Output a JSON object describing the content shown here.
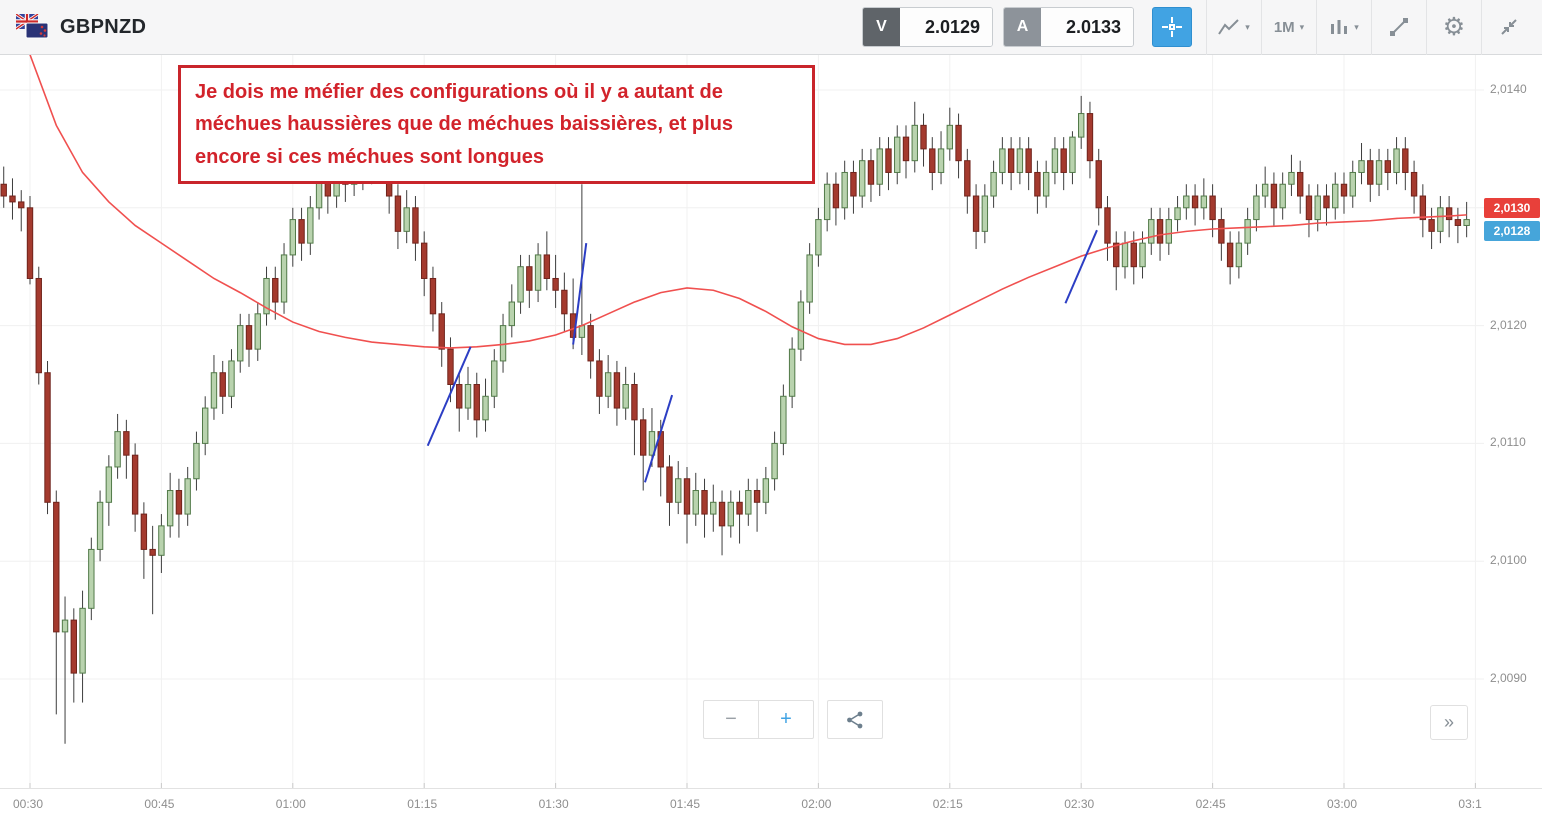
{
  "header": {
    "symbol": "GBPNZD",
    "sell_key": "V",
    "sell_price": "2.0129",
    "buy_key": "A",
    "buy_price": "2.0133",
    "timeframe": "1M"
  },
  "annotation": {
    "text": "Je dois me méfier des configurations où il y a autant de méchues haussières que de méchues baissières, et plus encore si ces méchues sont longues"
  },
  "axes": {
    "grid_pips": [
      140,
      130,
      120,
      110,
      100,
      90
    ],
    "price_ticks": [
      {
        "label": "2,0140",
        "pip": 140
      },
      {
        "label": "2,0120",
        "pip": 120
      },
      {
        "label": "2,0110",
        "pip": 110
      },
      {
        "label": "2,0100",
        "pip": 100
      },
      {
        "label": "2,0090",
        "pip": 90
      }
    ],
    "time_ticks": [
      {
        "label": "00:30",
        "minute": 0
      },
      {
        "label": "00:45",
        "minute": 15
      },
      {
        "label": "01:00",
        "minute": 30
      },
      {
        "label": "01:15",
        "minute": 45
      },
      {
        "label": "01:30",
        "minute": 60
      },
      {
        "label": "01:45",
        "minute": 75
      },
      {
        "label": "02:00",
        "minute": 90
      },
      {
        "label": "02:15",
        "minute": 105
      },
      {
        "label": "02:30",
        "minute": 120
      },
      {
        "label": "02:45",
        "minute": 135
      },
      {
        "label": "03:00",
        "minute": 150
      },
      {
        "label": "03:1",
        "minute": 165
      }
    ]
  },
  "price_badges": [
    {
      "label": "2,0130",
      "pip": 130,
      "color": "#e8403a"
    },
    {
      "label": "2,0128",
      "pip": 128,
      "color": "#46a5da"
    }
  ],
  "controls": {
    "zoom_out": "−",
    "zoom_in": "+",
    "expand": "»"
  },
  "chart_data": {
    "type": "candlestick",
    "symbol": "GBPNZD",
    "timeframe": "1M",
    "units": "pips over 2.0000 (price = 2.0 + pip/10000), values estimated from pixels",
    "x_range": [
      "00:27",
      "03:14"
    ],
    "ylim": [
      2.0084,
      2.0143
    ],
    "start_minute": -3,
    "minutes_per_candle": 1,
    "candles": [
      [
        132,
        133.5,
        130,
        131
      ],
      [
        131,
        132.5,
        129,
        130.5
      ],
      [
        130.5,
        131.5,
        128,
        130
      ],
      [
        130,
        131,
        123.5,
        124
      ],
      [
        124,
        125,
        115,
        116
      ],
      [
        116,
        117,
        104,
        105
      ],
      [
        105,
        106,
        87,
        94
      ],
      [
        94,
        97,
        84.5,
        95
      ],
      [
        95,
        96,
        88,
        90.5
      ],
      [
        90.5,
        97.5,
        88,
        96
      ],
      [
        96,
        102,
        95,
        101
      ],
      [
        101,
        106,
        100,
        105
      ],
      [
        105,
        109,
        103,
        108
      ],
      [
        108,
        112.5,
        107,
        111
      ],
      [
        111,
        112,
        107,
        109
      ],
      [
        109,
        110,
        102.5,
        104
      ],
      [
        104,
        105,
        98.5,
        101
      ],
      [
        101,
        103,
        95.5,
        100.5
      ],
      [
        100.5,
        104,
        99,
        103
      ],
      [
        103,
        107.5,
        102,
        106
      ],
      [
        106,
        107,
        102,
        104
      ],
      [
        104,
        108,
        103,
        107
      ],
      [
        107,
        111,
        106,
        110
      ],
      [
        110,
        114,
        109,
        113
      ],
      [
        113,
        117.5,
        112,
        116
      ],
      [
        116,
        117,
        112.5,
        114
      ],
      [
        114,
        118,
        113,
        117
      ],
      [
        117,
        121,
        116,
        120
      ],
      [
        120,
        121,
        116.5,
        118
      ],
      [
        118,
        122,
        117,
        121
      ],
      [
        121,
        125,
        120,
        124
      ],
      [
        124,
        125,
        120.5,
        122
      ],
      [
        122,
        127,
        121,
        126
      ],
      [
        126,
        130,
        125,
        129
      ],
      [
        129,
        130,
        125.5,
        127
      ],
      [
        127,
        131,
        126,
        130
      ],
      [
        130,
        134,
        129,
        133
      ],
      [
        133,
        134,
        129.5,
        131
      ],
      [
        131,
        135,
        130,
        134
      ],
      [
        134,
        135,
        130.5,
        132
      ],
      [
        132,
        135.5,
        131,
        135
      ],
      [
        135,
        136,
        131.5,
        133
      ],
      [
        133,
        136.5,
        132,
        135.5
      ],
      [
        135.5,
        136.5,
        132.5,
        134
      ],
      [
        134,
        135,
        129.5,
        131
      ],
      [
        131,
        132,
        126.5,
        128
      ],
      [
        128,
        131.5,
        127,
        130
      ],
      [
        130,
        131,
        125.5,
        127
      ],
      [
        127,
        128,
        122.5,
        124
      ],
      [
        124,
        125,
        119.5,
        121
      ],
      [
        121,
        122,
        116.5,
        118
      ],
      [
        118,
        119,
        113.5,
        115
      ],
      [
        115,
        116,
        111,
        113
      ],
      [
        113,
        116.5,
        112,
        115
      ],
      [
        115,
        116,
        110.5,
        112
      ],
      [
        112,
        115.5,
        111,
        114
      ],
      [
        114,
        118,
        113,
        117
      ],
      [
        117,
        121,
        116,
        120
      ],
      [
        120,
        123.5,
        119,
        122
      ],
      [
        122,
        126,
        121,
        125
      ],
      [
        125,
        126,
        121.5,
        123
      ],
      [
        123,
        127,
        122,
        126
      ],
      [
        126,
        128,
        123,
        124
      ],
      [
        124,
        126,
        121.5,
        123
      ],
      [
        123,
        124.5,
        119.5,
        121
      ],
      [
        121,
        124,
        118,
        119
      ],
      [
        119,
        132,
        117.5,
        120
      ],
      [
        120,
        121,
        115.5,
        117
      ],
      [
        117,
        118,
        112.5,
        114
      ],
      [
        114,
        117.5,
        113,
        116
      ],
      [
        116,
        117,
        111.5,
        113
      ],
      [
        113,
        116.5,
        112,
        115
      ],
      [
        115,
        116,
        109,
        112
      ],
      [
        112,
        113,
        106,
        109
      ],
      [
        109,
        113,
        108,
        111
      ],
      [
        111,
        112,
        105.5,
        108
      ],
      [
        108,
        109,
        103,
        105
      ],
      [
        105,
        108.5,
        104,
        107
      ],
      [
        107,
        108,
        101.5,
        104
      ],
      [
        104,
        107.5,
        103,
        106
      ],
      [
        106,
        107,
        102,
        104
      ],
      [
        104,
        106.5,
        102.5,
        105
      ],
      [
        105,
        106,
        100.5,
        103
      ],
      [
        103,
        106,
        102,
        105
      ],
      [
        105,
        106,
        101.5,
        104
      ],
      [
        104,
        107,
        103,
        106
      ],
      [
        106,
        107,
        102.5,
        105
      ],
      [
        105,
        108,
        104,
        107
      ],
      [
        107,
        111,
        106,
        110
      ],
      [
        110,
        115,
        109,
        114
      ],
      [
        114,
        119,
        113,
        118
      ],
      [
        118,
        123,
        117,
        122
      ],
      [
        122,
        127,
        121,
        126
      ],
      [
        126,
        130,
        125,
        129
      ],
      [
        129,
        133,
        128,
        132
      ],
      [
        132,
        133,
        128.5,
        130
      ],
      [
        130,
        134,
        129,
        133
      ],
      [
        133,
        134,
        129.5,
        131
      ],
      [
        131,
        135,
        130,
        134
      ],
      [
        134,
        135,
        130.5,
        132
      ],
      [
        132,
        136,
        131,
        135
      ],
      [
        135,
        136,
        131.5,
        133
      ],
      [
        133,
        137,
        132,
        136
      ],
      [
        136,
        137,
        132.5,
        134
      ],
      [
        134,
        139,
        133,
        137
      ],
      [
        137,
        138,
        133.5,
        135
      ],
      [
        135,
        136,
        131.5,
        133
      ],
      [
        133,
        136.5,
        132,
        135
      ],
      [
        135,
        138.5,
        134,
        137
      ],
      [
        137,
        138,
        132.5,
        134
      ],
      [
        134,
        135,
        129.5,
        131
      ],
      [
        131,
        132,
        126.5,
        128
      ],
      [
        128,
        132,
        127,
        131
      ],
      [
        131,
        134,
        130,
        133
      ],
      [
        133,
        136,
        132,
        135
      ],
      [
        135,
        136,
        131.5,
        133
      ],
      [
        133,
        136,
        132,
        135
      ],
      [
        135,
        136,
        131.5,
        133
      ],
      [
        133,
        134,
        129.5,
        131
      ],
      [
        131,
        134,
        130,
        133
      ],
      [
        133,
        136,
        132,
        135
      ],
      [
        135,
        136,
        131.5,
        133
      ],
      [
        133,
        136.5,
        132,
        136
      ],
      [
        136,
        139.5,
        135,
        138
      ],
      [
        138,
        139,
        132.5,
        134
      ],
      [
        134,
        135,
        128.5,
        130
      ],
      [
        130,
        131,
        125.5,
        127
      ],
      [
        127,
        128,
        123,
        125
      ],
      [
        125,
        128,
        124,
        127
      ],
      [
        127,
        128,
        123.5,
        125
      ],
      [
        125,
        128,
        124,
        127
      ],
      [
        127,
        130,
        126,
        129
      ],
      [
        129,
        130,
        125.5,
        127
      ],
      [
        127,
        130,
        126,
        129
      ],
      [
        129,
        131,
        128,
        130
      ],
      [
        130,
        132,
        129,
        131
      ],
      [
        131,
        132,
        128.5,
        130
      ],
      [
        130,
        132.5,
        129,
        131
      ],
      [
        131,
        132,
        127.5,
        129
      ],
      [
        129,
        130,
        125.5,
        127
      ],
      [
        127,
        128,
        123.5,
        125
      ],
      [
        125,
        128,
        124,
        127
      ],
      [
        127,
        130,
        126,
        129
      ],
      [
        129,
        132,
        128,
        131
      ],
      [
        131,
        133.5,
        130,
        132
      ],
      [
        132,
        133,
        128.5,
        130
      ],
      [
        130,
        133,
        129,
        132
      ],
      [
        132,
        134.5,
        131,
        133
      ],
      [
        133,
        134,
        129.5,
        131
      ],
      [
        131,
        132,
        127.5,
        129
      ],
      [
        129,
        132,
        128,
        131
      ],
      [
        131,
        132,
        128.5,
        130
      ],
      [
        130,
        133,
        129,
        132
      ],
      [
        132,
        133,
        129.5,
        131
      ],
      [
        131,
        134,
        130,
        133
      ],
      [
        133,
        135.5,
        132,
        134
      ],
      [
        134,
        135,
        130.5,
        132
      ],
      [
        132,
        135,
        131,
        134
      ],
      [
        134,
        135,
        131.5,
        133
      ],
      [
        133,
        136,
        132,
        135
      ],
      [
        135,
        136,
        131.5,
        133
      ],
      [
        133,
        134,
        129.5,
        131
      ],
      [
        131,
        132,
        127.5,
        129
      ],
      [
        129,
        130,
        126.5,
        128
      ],
      [
        128,
        131,
        127,
        130
      ],
      [
        130,
        131,
        127.5,
        129
      ],
      [
        129,
        130,
        127,
        128.5
      ],
      [
        128.5,
        130.5,
        127.5,
        129
      ]
    ],
    "ma_line": {
      "name": "moving-average",
      "color": "#f0504f",
      "points": [
        [
          -3,
          150
        ],
        [
          0,
          143
        ],
        [
          3,
          137
        ],
        [
          6,
          133
        ],
        [
          9,
          130.5
        ],
        [
          12,
          128.5
        ],
        [
          15,
          127
        ],
        [
          18,
          125.5
        ],
        [
          21,
          124
        ],
        [
          24,
          122.8
        ],
        [
          27,
          121.5
        ],
        [
          30,
          120.3
        ],
        [
          33,
          119.5
        ],
        [
          36,
          119
        ],
        [
          39,
          118.6
        ],
        [
          42,
          118.4
        ],
        [
          45,
          118.2
        ],
        [
          48,
          118.1
        ],
        [
          51,
          118.2
        ],
        [
          54,
          118.4
        ],
        [
          57,
          118.7
        ],
        [
          60,
          119.2
        ],
        [
          63,
          120
        ],
        [
          66,
          121
        ],
        [
          69,
          122
        ],
        [
          72,
          122.8
        ],
        [
          75,
          123.2
        ],
        [
          78,
          123
        ],
        [
          81,
          122.3
        ],
        [
          84,
          121.2
        ],
        [
          87,
          119.9
        ],
        [
          90,
          118.9
        ],
        [
          93,
          118.4
        ],
        [
          96,
          118.4
        ],
        [
          99,
          118.9
        ],
        [
          102,
          119.8
        ],
        [
          105,
          120.9
        ],
        [
          108,
          122
        ],
        [
          111,
          123.1
        ],
        [
          114,
          124.1
        ],
        [
          117,
          125
        ],
        [
          120,
          125.9
        ],
        [
          123,
          126.6
        ],
        [
          126,
          127.2
        ],
        [
          129,
          127.7
        ],
        [
          132,
          128
        ],
        [
          135,
          128.2
        ],
        [
          138,
          128.3
        ],
        [
          141,
          128.4
        ],
        [
          144,
          128.5
        ],
        [
          147,
          128.7
        ],
        [
          150,
          128.8
        ],
        [
          153,
          128.9
        ],
        [
          156,
          129.1
        ],
        [
          159,
          129.2
        ],
        [
          162,
          129.3
        ],
        [
          164,
          129.4
        ]
      ]
    },
    "trendlines": {
      "color": "#2c3ec4",
      "segments": [
        [
          45.4,
          109.8,
          50.3,
          118.2
        ],
        [
          62.0,
          118.4,
          63.5,
          127.0
        ],
        [
          70.2,
          106.7,
          73.3,
          114.1
        ],
        [
          118.2,
          121.9,
          121.8,
          128.1
        ]
      ]
    }
  }
}
